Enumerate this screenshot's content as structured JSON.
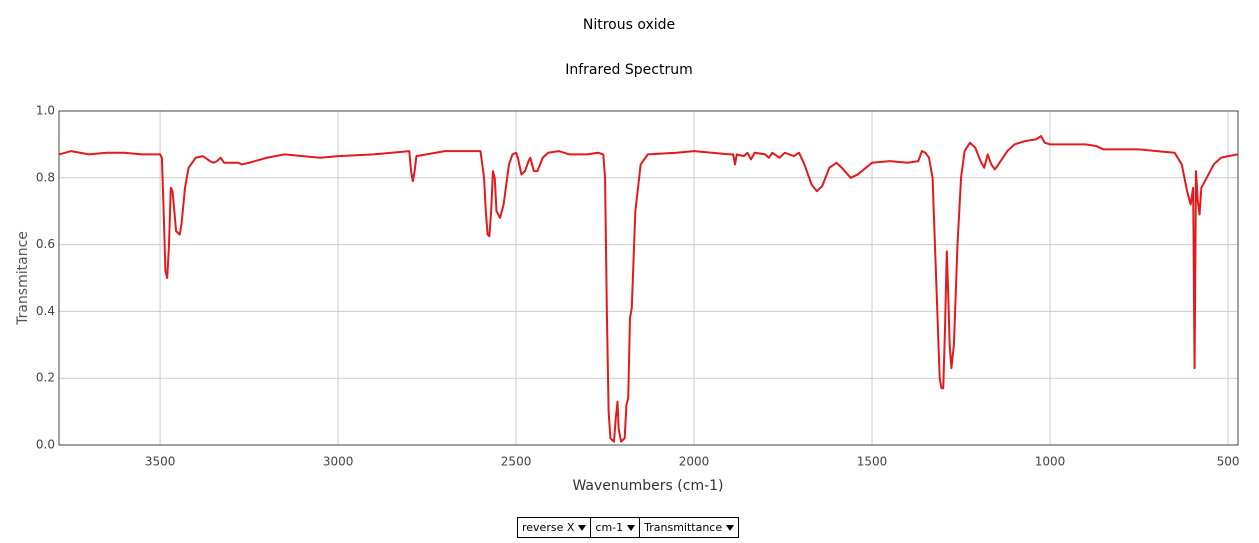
{
  "chart_data": {
    "type": "line",
    "title": "Nitrous oxide",
    "subtitle": "Infrared Spectrum",
    "x_label": "Wavenumbers (cm-1)",
    "y_label": "Transmitance",
    "xlim": [
      3784,
      472
    ],
    "ylim": [
      0,
      1
    ],
    "xticks": [
      3500,
      3000,
      2500,
      2000,
      1500,
      1000,
      500
    ],
    "yticks": [
      {
        "value": 0,
        "label": "0.0"
      },
      0.2,
      0.4,
      0.6,
      0.8,
      {
        "value": 1,
        "label": "1.0"
      }
    ],
    "grid": true,
    "series": [
      {
        "color": "#e31a1c",
        "x": [
          3784,
          3750,
          3700,
          3650,
          3600,
          3550,
          3500,
          3495,
          3490,
          3485,
          3480,
          3475,
          3470,
          3465,
          3460,
          3455,
          3445,
          3440,
          3430,
          3420,
          3400,
          3380,
          3360,
          3350,
          3340,
          3330,
          3320,
          3300,
          3280,
          3270,
          3250,
          3200,
          3150,
          3100,
          3050,
          3000,
          2900,
          2850,
          2800,
          2795,
          2790,
          2785,
          2780,
          2700,
          2600,
          2590,
          2585,
          2580,
          2575,
          2570,
          2565,
          2560,
          2555,
          2545,
          2535,
          2520,
          2510,
          2500,
          2495,
          2485,
          2475,
          2465,
          2460,
          2455,
          2450,
          2440,
          2425,
          2410,
          2380,
          2350,
          2300,
          2270,
          2255,
          2250,
          2245,
          2240,
          2235,
          2225,
          2220,
          2215,
          2212,
          2205,
          2195,
          2190,
          2185,
          2180,
          2175,
          2165,
          2150,
          2130,
          2050,
          2000,
          1950,
          1900,
          1890,
          1885,
          1880,
          1860,
          1850,
          1840,
          1830,
          1800,
          1790,
          1780,
          1760,
          1745,
          1720,
          1705,
          1690,
          1670,
          1655,
          1640,
          1620,
          1600,
          1585,
          1560,
          1540,
          1500,
          1450,
          1400,
          1370,
          1360,
          1350,
          1340,
          1330,
          1320,
          1310,
          1305,
          1300,
          1295,
          1290,
          1286,
          1282,
          1277,
          1270,
          1260,
          1250,
          1240,
          1225,
          1210,
          1195,
          1185,
          1175,
          1165,
          1155,
          1145,
          1120,
          1100,
          1070,
          1040,
          1025,
          1015,
          1000,
          950,
          900,
          870,
          850,
          800,
          750,
          700,
          650,
          630,
          615,
          605,
          598,
          594,
          590,
          585,
          580,
          575,
          560,
          540,
          520,
          500,
          472
        ],
        "values": [
          0.87,
          0.88,
          0.87,
          0.875,
          0.875,
          0.87,
          0.87,
          0.86,
          0.7,
          0.52,
          0.5,
          0.6,
          0.77,
          0.76,
          0.7,
          0.64,
          0.63,
          0.66,
          0.77,
          0.83,
          0.86,
          0.865,
          0.85,
          0.845,
          0.85,
          0.86,
          0.845,
          0.845,
          0.845,
          0.84,
          0.845,
          0.86,
          0.87,
          0.865,
          0.86,
          0.865,
          0.87,
          0.875,
          0.88,
          0.82,
          0.79,
          0.82,
          0.865,
          0.88,
          0.88,
          0.8,
          0.7,
          0.63,
          0.625,
          0.7,
          0.82,
          0.8,
          0.7,
          0.68,
          0.72,
          0.84,
          0.87,
          0.875,
          0.86,
          0.81,
          0.82,
          0.85,
          0.86,
          0.84,
          0.82,
          0.82,
          0.86,
          0.875,
          0.88,
          0.87,
          0.87,
          0.875,
          0.87,
          0.8,
          0.4,
          0.1,
          0.02,
          0.01,
          0.08,
          0.13,
          0.05,
          0.01,
          0.02,
          0.12,
          0.14,
          0.38,
          0.41,
          0.7,
          0.84,
          0.87,
          0.875,
          0.88,
          0.875,
          0.87,
          0.87,
          0.84,
          0.87,
          0.865,
          0.875,
          0.855,
          0.875,
          0.87,
          0.86,
          0.875,
          0.86,
          0.875,
          0.865,
          0.875,
          0.84,
          0.78,
          0.76,
          0.775,
          0.83,
          0.845,
          0.83,
          0.8,
          0.81,
          0.845,
          0.85,
          0.845,
          0.85,
          0.88,
          0.875,
          0.86,
          0.8,
          0.5,
          0.2,
          0.17,
          0.17,
          0.35,
          0.58,
          0.45,
          0.3,
          0.23,
          0.3,
          0.6,
          0.8,
          0.88,
          0.905,
          0.89,
          0.85,
          0.83,
          0.87,
          0.84,
          0.825,
          0.84,
          0.88,
          0.9,
          0.91,
          0.915,
          0.925,
          0.905,
          0.9,
          0.9,
          0.9,
          0.895,
          0.885,
          0.885,
          0.885,
          0.88,
          0.875,
          0.84,
          0.76,
          0.72,
          0.77,
          0.23,
          0.82,
          0.73,
          0.69,
          0.77,
          0.8,
          0.84,
          0.86,
          0.865,
          0.87
        ]
      }
    ]
  },
  "controls": [
    "reverse X",
    "cm-1",
    "Transmittance"
  ]
}
